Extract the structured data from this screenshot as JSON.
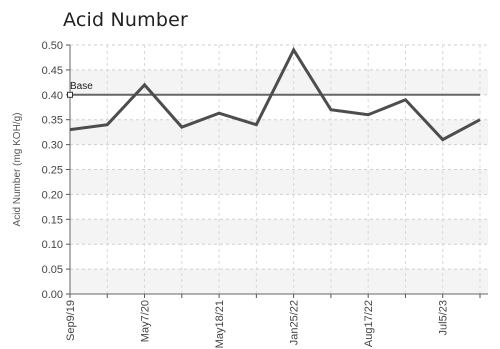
{
  "chart_data": {
    "type": "line",
    "title": "Acid Number",
    "xlabel": "",
    "ylabel": "Acid Number (mg KOH/g)",
    "ylim": [
      0,
      0.5
    ],
    "yticks": [
      "0.00",
      "0.05",
      "0.10",
      "0.15",
      "0.20",
      "0.25",
      "0.30",
      "0.35",
      "0.40",
      "0.45",
      "0.50"
    ],
    "x_tick_labels": [
      "Sep9/19",
      "May7/20",
      "May18/21",
      "Jan25/22",
      "Aug17/22",
      "Jul5/23"
    ],
    "grid": true,
    "series": [
      {
        "values": [
          0.33,
          0.34,
          0.42,
          0.335,
          0.363,
          0.34,
          0.49,
          0.37,
          0.36,
          0.39,
          0.31,
          0.35
        ]
      }
    ],
    "reference_line": {
      "label": "Base",
      "value": 0.4
    }
  }
}
